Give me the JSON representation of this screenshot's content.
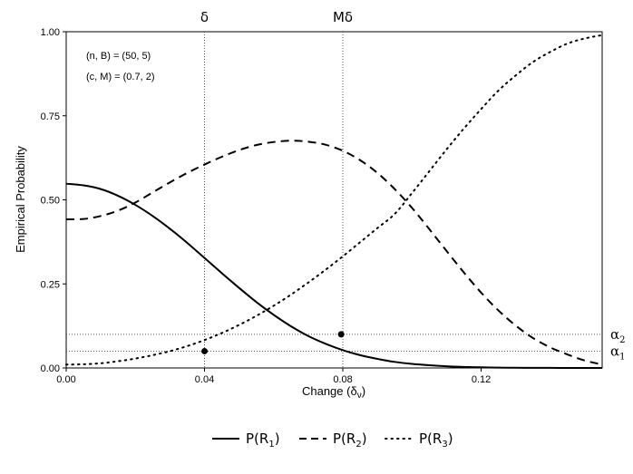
{
  "chart_data": {
    "type": "line",
    "title": "",
    "xlabel": "Change (δ",
    "xlabel_sub": "ν",
    "xlabel_close": ")",
    "ylabel": "Empirical Probability",
    "xlim": [
      0,
      0.155
    ],
    "ylim": [
      0,
      1
    ],
    "xticks": [
      0.0,
      0.04,
      0.08,
      0.12
    ],
    "xtick_labels": [
      "0.00",
      "0.04",
      "0.08",
      "0.12"
    ],
    "yticks": [
      0,
      0.25,
      0.5,
      0.75,
      1.0
    ],
    "ytick_labels": [
      "0.00",
      "0.25",
      "0.50",
      "0.75",
      "1.00"
    ],
    "annotations": [
      "(n, B) = (50, 5)",
      "(c, M) = (0.7, 2)"
    ],
    "vlines": [
      {
        "x": 0.04,
        "label": "δ"
      },
      {
        "x": 0.08,
        "label": "Mδ"
      }
    ],
    "hlines": [
      {
        "y": 0.1,
        "label": "α",
        "sub": "2"
      },
      {
        "y": 0.05,
        "label": "α",
        "sub": "1"
      }
    ],
    "points": [
      {
        "x": 0.04,
        "y": 0.05
      },
      {
        "x": 0.0795,
        "y": 0.1
      }
    ],
    "x": [
      0.0,
      0.005,
      0.01,
      0.015,
      0.02,
      0.025,
      0.03,
      0.035,
      0.04,
      0.045,
      0.05,
      0.055,
      0.06,
      0.065,
      0.07,
      0.075,
      0.08,
      0.085,
      0.09,
      0.095,
      0.1,
      0.105,
      0.11,
      0.115,
      0.12,
      0.125,
      0.13,
      0.135,
      0.14,
      0.145,
      0.15,
      0.155
    ],
    "series": [
      {
        "name": "P(R",
        "sub": "1",
        "style": "solid",
        "values": [
          0.548,
          0.543,
          0.532,
          0.512,
          0.485,
          0.452,
          0.414,
          0.372,
          0.327,
          0.282,
          0.238,
          0.196,
          0.158,
          0.124,
          0.095,
          0.072,
          0.053,
          0.038,
          0.027,
          0.018,
          0.012,
          0.008,
          0.005,
          0.003,
          0.002,
          0.001,
          0.0005,
          0.0003,
          0.0002,
          0.0001,
          0.0,
          0.0
        ]
      },
      {
        "name": "P(R",
        "sub": "2",
        "style": "dashed",
        "values": [
          0.442,
          0.443,
          0.452,
          0.468,
          0.492,
          0.522,
          0.552,
          0.58,
          0.605,
          0.628,
          0.648,
          0.663,
          0.672,
          0.676,
          0.673,
          0.664,
          0.646,
          0.618,
          0.58,
          0.532,
          0.476,
          0.413,
          0.348,
          0.284,
          0.224,
          0.171,
          0.126,
          0.089,
          0.061,
          0.04,
          0.022,
          0.01
        ]
      },
      {
        "name": "P(R",
        "sub": "3",
        "style": "dotted",
        "values": [
          0.01,
          0.011,
          0.014,
          0.02,
          0.028,
          0.038,
          0.05,
          0.065,
          0.083,
          0.104,
          0.128,
          0.155,
          0.185,
          0.218,
          0.254,
          0.292,
          0.332,
          0.374,
          0.416,
          0.458,
          0.52,
          0.585,
          0.65,
          0.712,
          0.77,
          0.825,
          0.87,
          0.91,
          0.94,
          0.965,
          0.98,
          0.99
        ]
      }
    ],
    "legend_position": "bottom"
  }
}
